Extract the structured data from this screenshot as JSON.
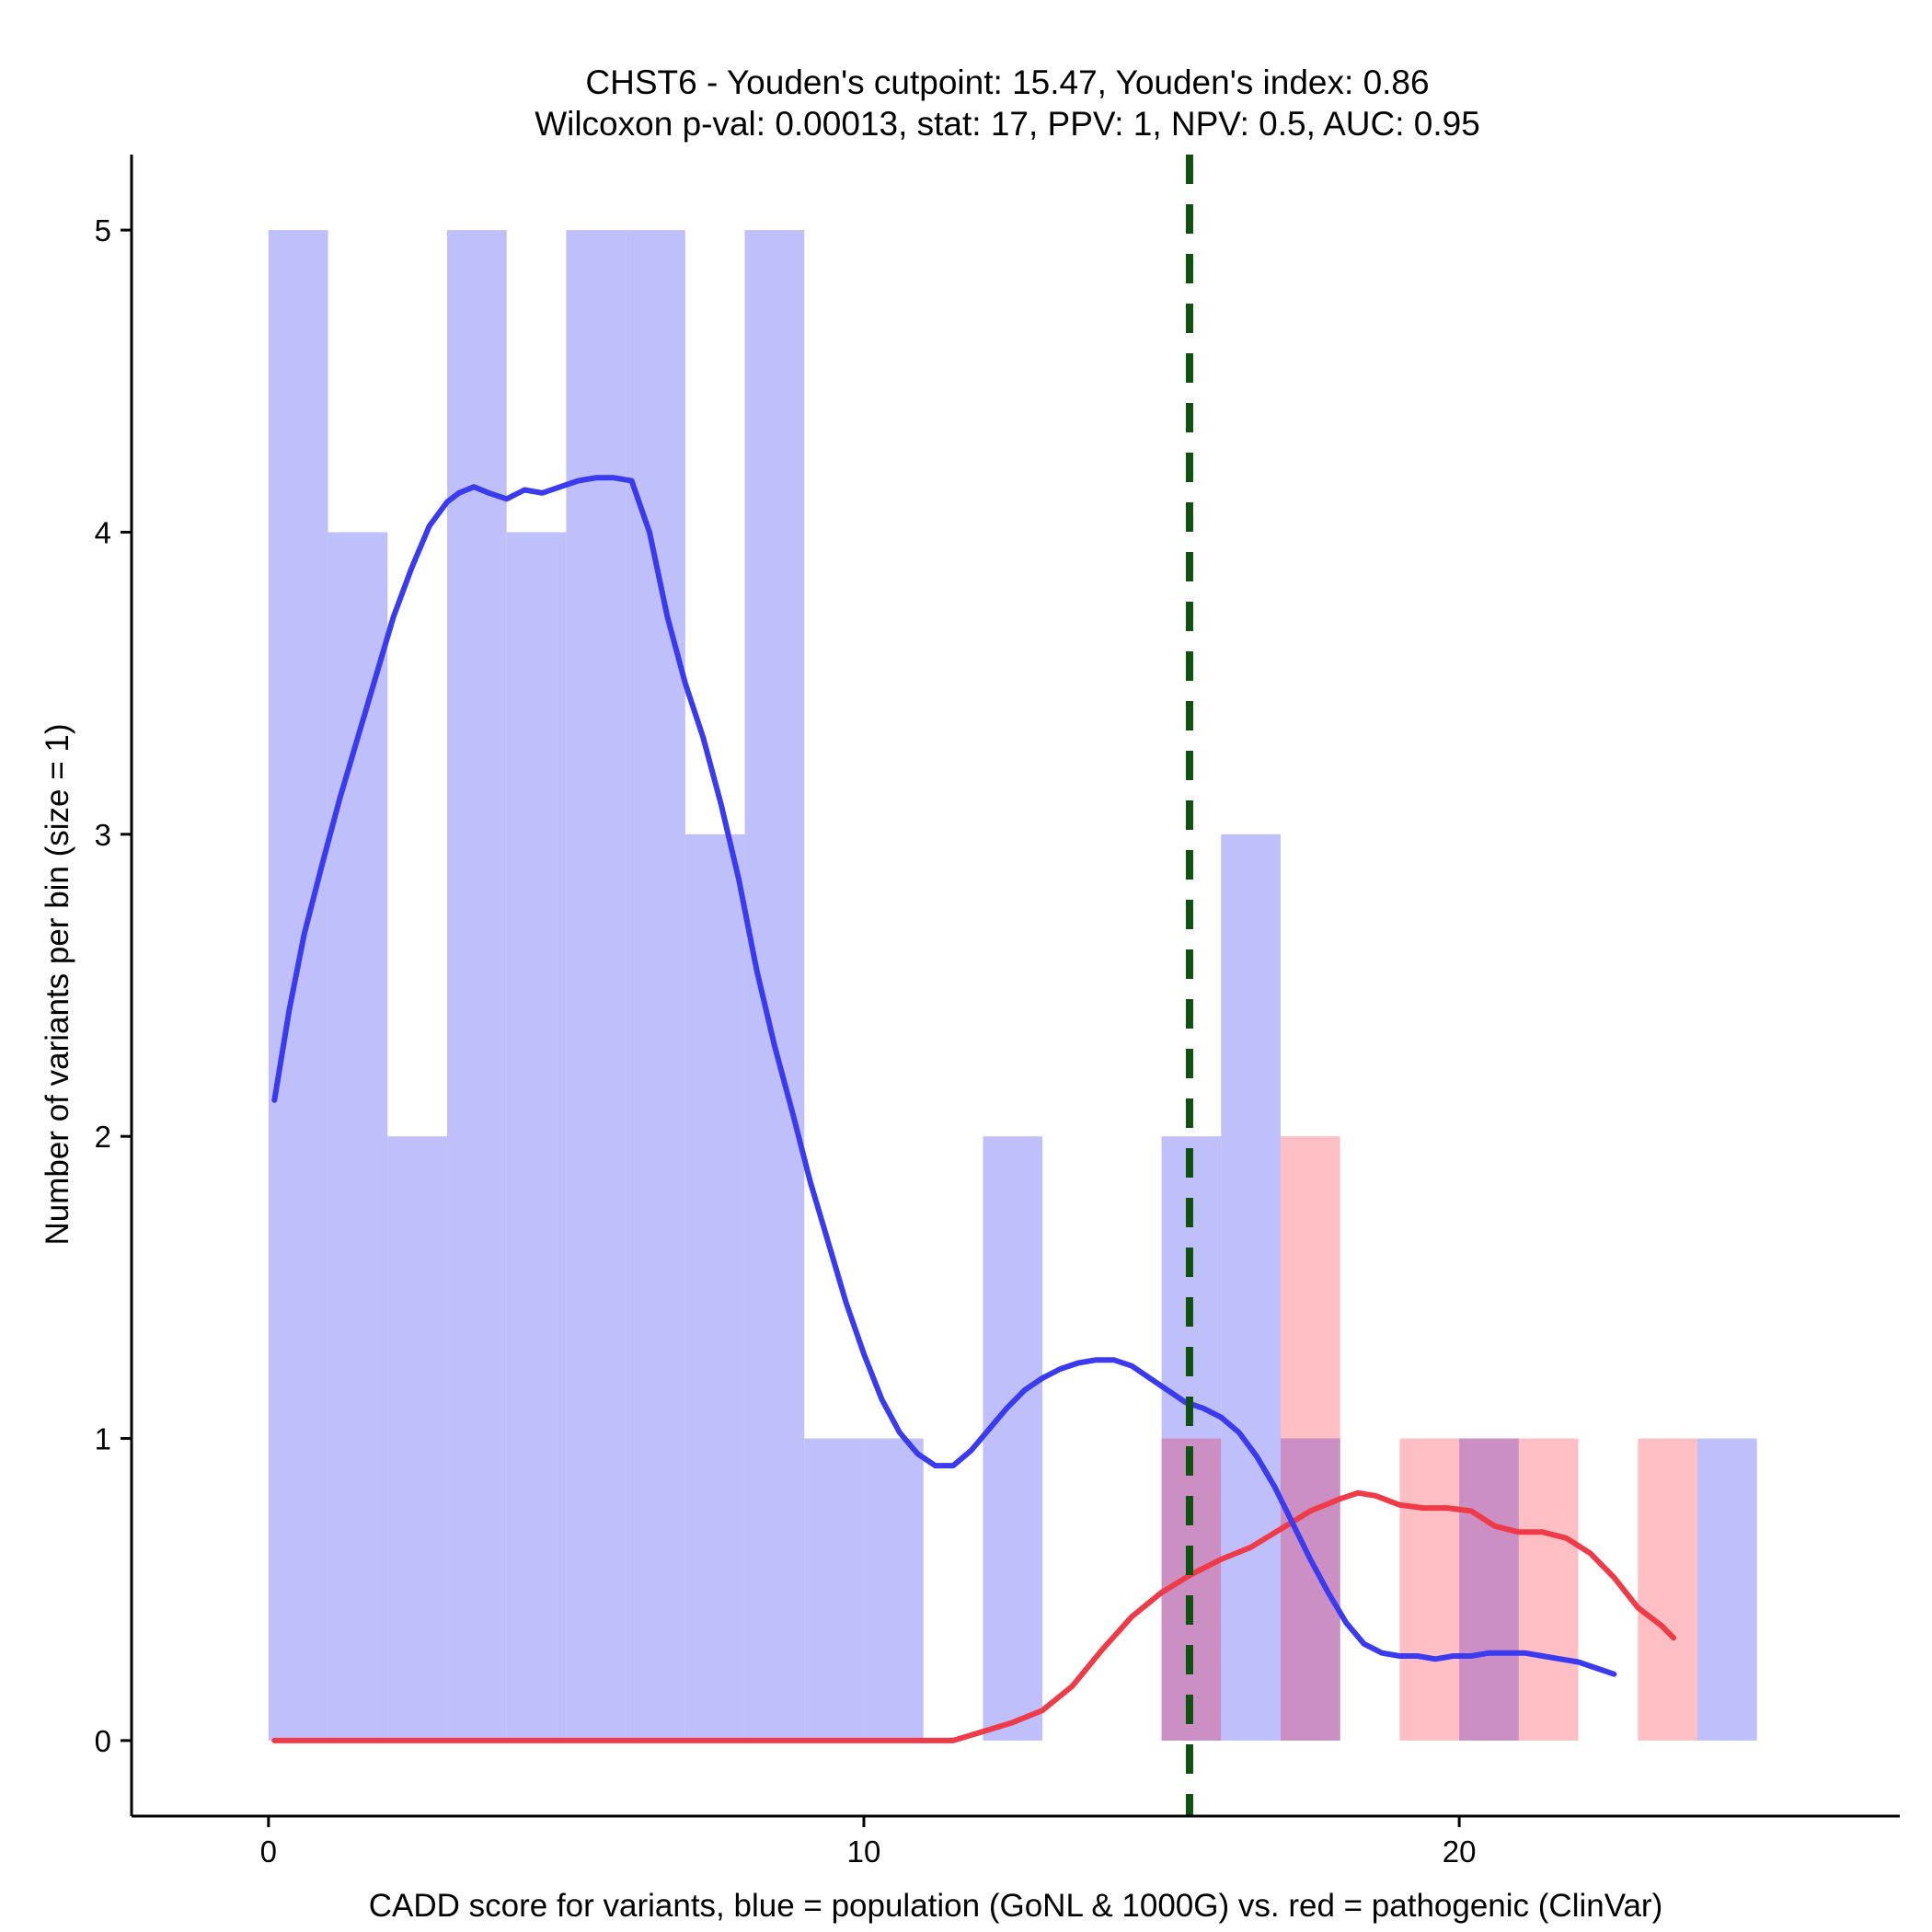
{
  "chart_data": {
    "type": "bar",
    "title_line1": "CHST6 - Youden's cutpoint: 15.47, Youden's index: 0.86",
    "title_line2": "Wilcoxon p-val: 0.00013, stat: 17, PPV: 1, NPV: 0.5, AUC: 0.95",
    "xlabel": "CADD score for variants, blue = population (GoNL & 1000G) vs. red = pathogenic (ClinVar)",
    "ylabel": "Number of variants per bin (size = 1)",
    "xlim": [
      -2.3,
      27.4
    ],
    "ylim": [
      -0.25,
      5.25
    ],
    "x_ticks": [
      0,
      10,
      20
    ],
    "y_ticks": [
      0,
      1,
      2,
      3,
      4,
      5
    ],
    "bin_size": 1,
    "cutpoint": 15.47,
    "colors": {
      "population_bar": "#bfbffb",
      "pathogenic_bar": "#fdbfc3",
      "overlap_bar": "#cc8fc4",
      "population_line": "#3a3af0",
      "pathogenic_line": "#ef3a47",
      "cutpoint_line": "#0f520f"
    },
    "series": [
      {
        "name": "population (GoNL & 1000G)",
        "bins": [
          {
            "start": 0,
            "count": 5
          },
          {
            "start": 1,
            "count": 4
          },
          {
            "start": 2,
            "count": 2
          },
          {
            "start": 3,
            "count": 5
          },
          {
            "start": 4,
            "count": 4
          },
          {
            "start": 5,
            "count": 5
          },
          {
            "start": 6,
            "count": 5
          },
          {
            "start": 7,
            "count": 3
          },
          {
            "start": 8,
            "count": 5
          },
          {
            "start": 9,
            "count": 1
          },
          {
            "start": 10,
            "count": 1
          },
          {
            "start": 12,
            "count": 2
          },
          {
            "start": 15,
            "count": 2
          },
          {
            "start": 16,
            "count": 3
          },
          {
            "start": 17,
            "count": 1
          },
          {
            "start": 20,
            "count": 1
          },
          {
            "start": 24,
            "count": 1
          }
        ],
        "density": [
          [
            0.1,
            2.12
          ],
          [
            0.35,
            2.42
          ],
          [
            0.6,
            2.67
          ],
          [
            0.9,
            2.9
          ],
          [
            1.2,
            3.12
          ],
          [
            1.5,
            3.32
          ],
          [
            1.8,
            3.52
          ],
          [
            2.1,
            3.72
          ],
          [
            2.4,
            3.88
          ],
          [
            2.7,
            4.02
          ],
          [
            3.0,
            4.1
          ],
          [
            3.2,
            4.13
          ],
          [
            3.45,
            4.15
          ],
          [
            3.7,
            4.13
          ],
          [
            4.0,
            4.11
          ],
          [
            4.3,
            4.14
          ],
          [
            4.6,
            4.13
          ],
          [
            4.9,
            4.15
          ],
          [
            5.2,
            4.17
          ],
          [
            5.5,
            4.18
          ],
          [
            5.8,
            4.18
          ],
          [
            6.1,
            4.17
          ],
          [
            6.4,
            4.0
          ],
          [
            6.7,
            3.72
          ],
          [
            7.0,
            3.5
          ],
          [
            7.3,
            3.32
          ],
          [
            7.6,
            3.1
          ],
          [
            7.9,
            2.85
          ],
          [
            8.2,
            2.55
          ],
          [
            8.5,
            2.3
          ],
          [
            8.8,
            2.08
          ],
          [
            9.1,
            1.85
          ],
          [
            9.4,
            1.65
          ],
          [
            9.7,
            1.45
          ],
          [
            10.0,
            1.28
          ],
          [
            10.3,
            1.13
          ],
          [
            10.6,
            1.02
          ],
          [
            10.9,
            0.95
          ],
          [
            11.2,
            0.91
          ],
          [
            11.5,
            0.91
          ],
          [
            11.8,
            0.96
          ],
          [
            12.1,
            1.03
          ],
          [
            12.4,
            1.1
          ],
          [
            12.7,
            1.16
          ],
          [
            13.0,
            1.2
          ],
          [
            13.3,
            1.23
          ],
          [
            13.6,
            1.25
          ],
          [
            13.9,
            1.26
          ],
          [
            14.2,
            1.26
          ],
          [
            14.5,
            1.24
          ],
          [
            14.8,
            1.2
          ],
          [
            15.1,
            1.16
          ],
          [
            15.4,
            1.12
          ],
          [
            15.7,
            1.1
          ],
          [
            16.0,
            1.07
          ],
          [
            16.3,
            1.02
          ],
          [
            16.6,
            0.94
          ],
          [
            16.9,
            0.84
          ],
          [
            17.2,
            0.72
          ],
          [
            17.5,
            0.6
          ],
          [
            17.8,
            0.49
          ],
          [
            18.1,
            0.39
          ],
          [
            18.4,
            0.32
          ],
          [
            18.7,
            0.29
          ],
          [
            19.0,
            0.28
          ],
          [
            19.3,
            0.28
          ],
          [
            19.6,
            0.27
          ],
          [
            19.9,
            0.28
          ],
          [
            20.2,
            0.28
          ],
          [
            20.5,
            0.29
          ],
          [
            20.8,
            0.29
          ],
          [
            21.1,
            0.29
          ],
          [
            21.4,
            0.28
          ],
          [
            21.7,
            0.27
          ],
          [
            22.0,
            0.26
          ],
          [
            22.3,
            0.24
          ],
          [
            22.6,
            0.22
          ]
        ]
      },
      {
        "name": "pathogenic (ClinVar)",
        "bins": [
          {
            "start": 15,
            "count": 1
          },
          {
            "start": 17,
            "count": 2
          },
          {
            "start": 19,
            "count": 1
          },
          {
            "start": 20,
            "count": 1
          },
          {
            "start": 21,
            "count": 1
          },
          {
            "start": 23,
            "count": 1
          }
        ],
        "density": [
          [
            0.1,
            0.0
          ],
          [
            11.5,
            0.0
          ],
          [
            12.0,
            0.03
          ],
          [
            12.5,
            0.06
          ],
          [
            13.0,
            0.1
          ],
          [
            13.5,
            0.18
          ],
          [
            14.0,
            0.3
          ],
          [
            14.5,
            0.41
          ],
          [
            15.0,
            0.49
          ],
          [
            15.5,
            0.55
          ],
          [
            16.0,
            0.6
          ],
          [
            16.5,
            0.64
          ],
          [
            17.0,
            0.7
          ],
          [
            17.5,
            0.76
          ],
          [
            18.0,
            0.8
          ],
          [
            18.3,
            0.82
          ],
          [
            18.6,
            0.81
          ],
          [
            19.0,
            0.78
          ],
          [
            19.4,
            0.77
          ],
          [
            19.8,
            0.77
          ],
          [
            20.2,
            0.76
          ],
          [
            20.6,
            0.71
          ],
          [
            21.0,
            0.69
          ],
          [
            21.4,
            0.69
          ],
          [
            21.8,
            0.67
          ],
          [
            22.2,
            0.62
          ],
          [
            22.6,
            0.54
          ],
          [
            23.0,
            0.44
          ],
          [
            23.4,
            0.38
          ],
          [
            23.6,
            0.34
          ]
        ]
      }
    ]
  }
}
